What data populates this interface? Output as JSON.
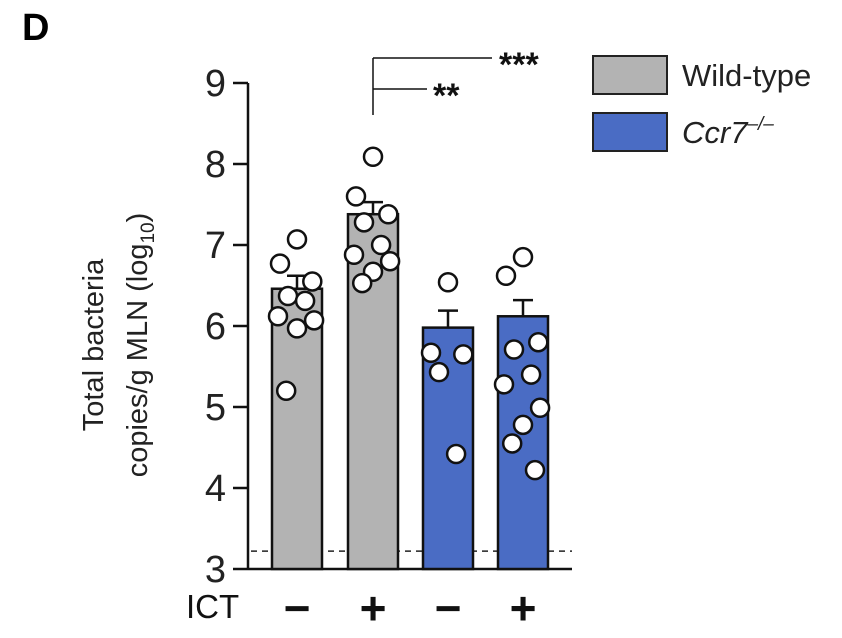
{
  "panel_label": "D",
  "chart_data": {
    "type": "bar",
    "categories": [
      "Wild-type ICT −",
      "Wild-type ICT +",
      "Ccr7−/− ICT −",
      "Ccr7−/− ICT +"
    ],
    "ylabel_line1": "Total bacteria",
    "ylabel_line2": "copies/g MLN (log",
    "ylabel_sub": "10",
    "ylabel_close": ")",
    "ylim": [
      3,
      9
    ],
    "yticks": [
      "3",
      "4",
      "5",
      "6",
      "7",
      "8",
      "9"
    ],
    "detection_limit": 3.22,
    "row_label": "ICT",
    "ict_marks": [
      "−",
      "+",
      "−",
      "+"
    ],
    "legend": [
      {
        "label": "Wild-type",
        "italic": false,
        "color": "#b3b3b3"
      },
      {
        "label_base": "Ccr7",
        "label_sup": "–/–",
        "italic": true,
        "color": "#4a6cc4"
      }
    ],
    "bars": [
      {
        "group": "Wild-type",
        "ict": "−",
        "mean": 6.46,
        "sem": 0.16,
        "points": [
          7.07,
          6.77,
          6.55,
          6.37,
          6.31,
          6.12,
          6.07,
          5.97,
          5.2
        ]
      },
      {
        "group": "Wild-type",
        "ict": "+",
        "mean": 7.38,
        "sem": 0.15,
        "points": [
          8.09,
          7.6,
          7.38,
          7.28,
          7.0,
          6.88,
          6.8,
          6.67,
          6.53
        ]
      },
      {
        "group": "Ccr7-/-",
        "ict": "−",
        "mean": 5.98,
        "sem": 0.21,
        "points": [
          6.54,
          5.67,
          5.65,
          5.43,
          4.42
        ]
      },
      {
        "group": "Ccr7-/-",
        "ict": "+",
        "mean": 6.12,
        "sem": 0.2,
        "points": [
          6.85,
          6.62,
          5.8,
          5.71,
          5.4,
          5.28,
          4.99,
          4.78,
          4.55,
          4.22
        ]
      }
    ],
    "significance": [
      {
        "label": "**",
        "between": [
          1,
          2
        ]
      },
      {
        "label": "***",
        "between": [
          1,
          3
        ]
      }
    ],
    "grid": false,
    "legend_placement": "top-right"
  }
}
